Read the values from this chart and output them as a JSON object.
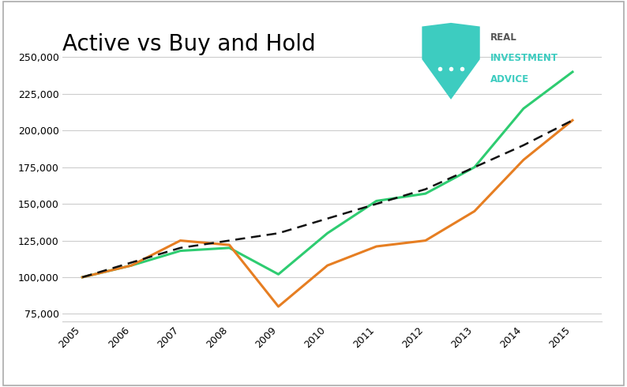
{
  "title": "Active vs Buy and Hold",
  "years": [
    2005,
    2006,
    2007,
    2008,
    2009,
    2010,
    2011,
    2012,
    2013,
    2014,
    2015
  ],
  "active": [
    100000,
    108000,
    118000,
    120000,
    102000,
    130000,
    152000,
    157000,
    175000,
    215000,
    240000
  ],
  "buy_and_hold": [
    100000,
    108000,
    125000,
    122000,
    80000,
    108000,
    121000,
    125000,
    145000,
    180000,
    207000
  ],
  "expected": [
    100000,
    110000,
    120000,
    125000,
    130000,
    140000,
    150000,
    160000,
    175000,
    190000,
    207000
  ],
  "active_color": "#2ecc71",
  "buy_hold_color": "#e67e22",
  "expected_color": "#111111",
  "background_color": "#ffffff",
  "grid_color": "#cccccc",
  "ylim": [
    70000,
    260000
  ],
  "yticks": [
    75000,
    100000,
    125000,
    150000,
    175000,
    200000,
    225000,
    250000
  ],
  "title_fontsize": 20,
  "legend_fontsize": 10,
  "tick_fontsize": 9,
  "logo_shield_color": "#3dccc0",
  "logo_text_color": "#555555",
  "logo_accent_color": "#3dccc0"
}
